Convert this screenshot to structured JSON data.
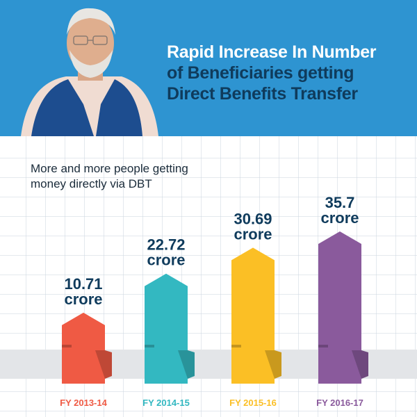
{
  "header": {
    "title_line1": "Rapid Increase In Number",
    "title_line2": "of Beneficiaries getting",
    "title_line3": "Direct Benefits Transfer"
  },
  "subtitle_line1": "More and more people getting",
  "subtitle_line2": "money directly via DBT",
  "chart_data": {
    "type": "bar",
    "categories": [
      "FY 2013-14",
      "FY 2014-15",
      "FY 2015-16",
      "FY 2016-17"
    ],
    "values": [
      10.71,
      22.72,
      30.69,
      35.7
    ],
    "value_labels": [
      "10.71",
      "22.72",
      "30.69",
      "35.7"
    ],
    "unit_label": "crore",
    "colors": [
      "#ef5a44",
      "#33b8c1",
      "#fbbf25",
      "#8a5a9c"
    ],
    "label_color": "#0f3b5c",
    "grid": true
  }
}
